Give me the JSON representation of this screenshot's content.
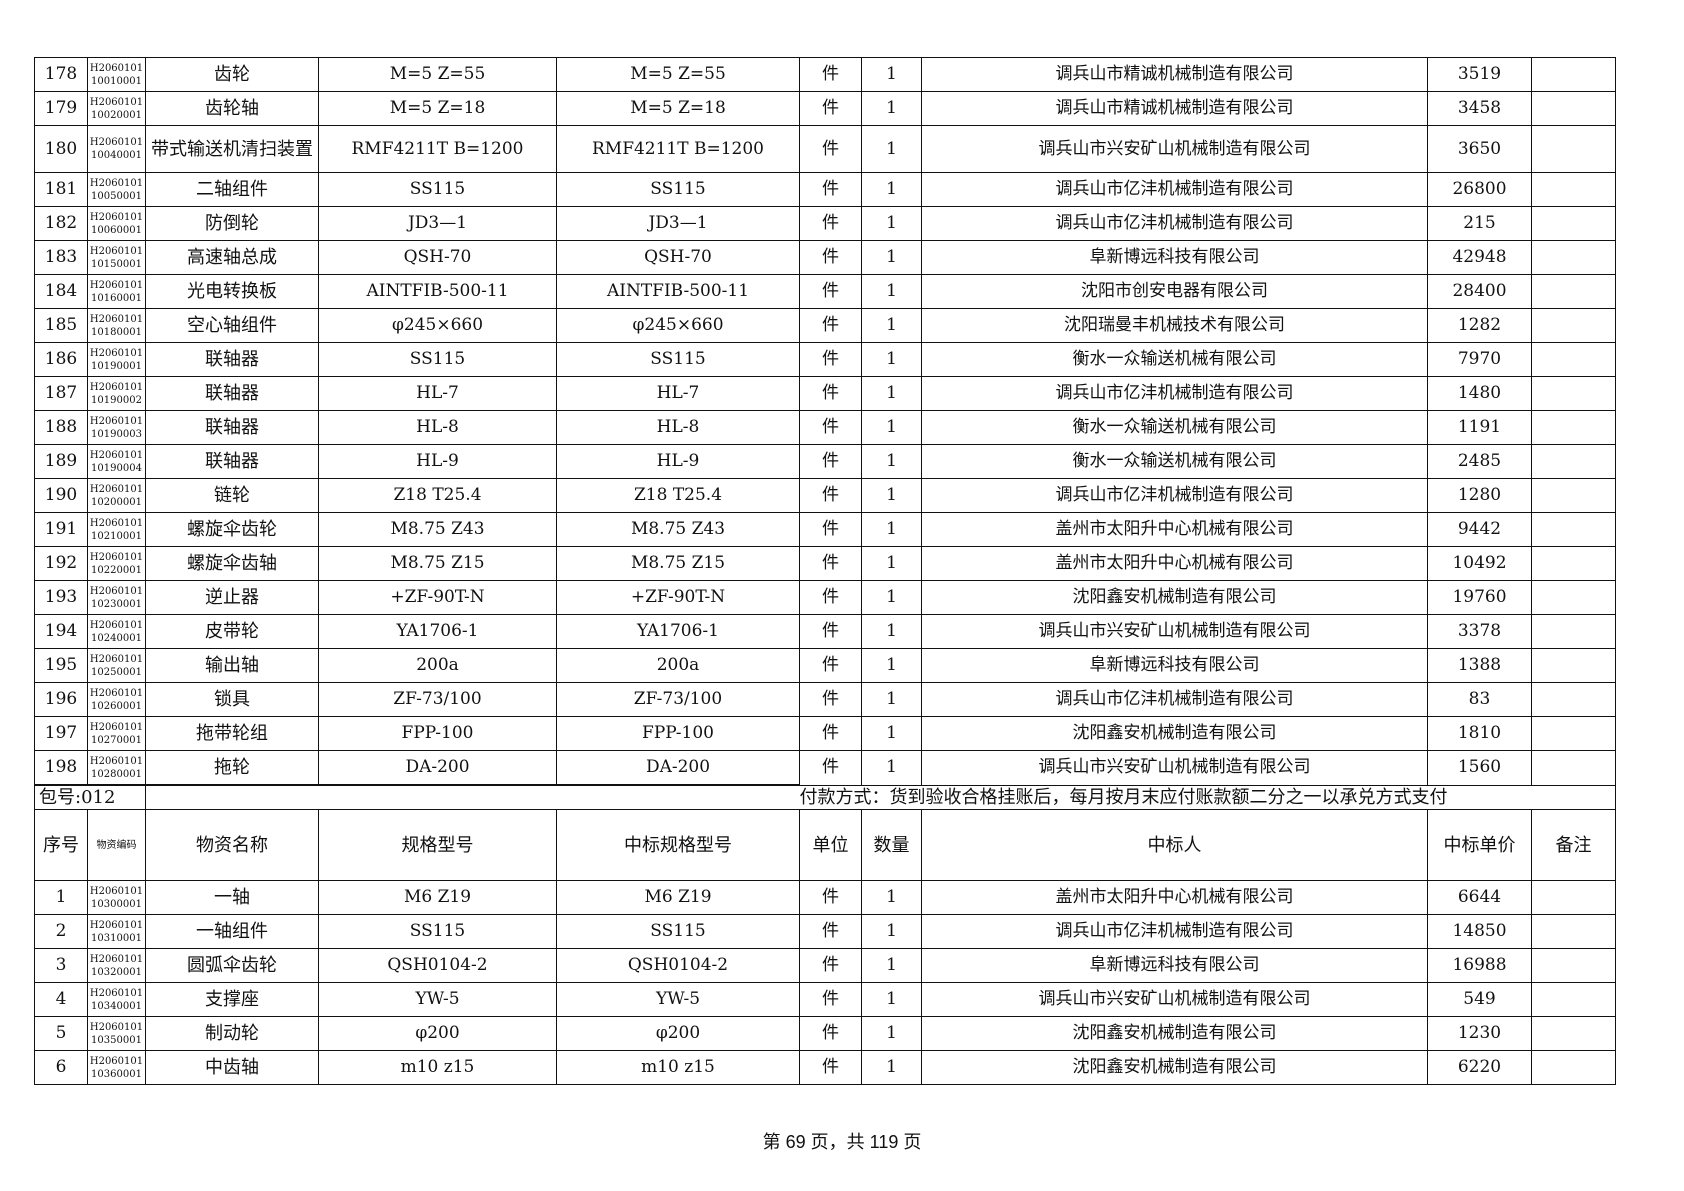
{
  "rows_top": [
    {
      "no": "178",
      "code": [
        "H2060101",
        "10010001"
      ],
      "name": "齿轮",
      "spec": "M=5 Z=55",
      "bid_spec": "M=5 Z=55",
      "unit": "件",
      "qty": "1",
      "bidder": "调兵山市精诚机械制造有限公司",
      "price": "3519",
      "remark": ""
    },
    {
      "no": "179",
      "code": [
        "H2060101",
        "10020001"
      ],
      "name": "齿轮轴",
      "spec": "M=5 Z=18",
      "bid_spec": "M=5 Z=18",
      "unit": "件",
      "qty": "1",
      "bidder": "调兵山市精诚机械制造有限公司",
      "price": "3458",
      "remark": ""
    },
    {
      "no": "180",
      "code": [
        "H2060101",
        "10040001"
      ],
      "name": "带式输送机清扫装置",
      "spec": "RMF4211T B=1200",
      "bid_spec": "RMF4211T B=1200",
      "unit": "件",
      "qty": "1",
      "bidder": "调兵山市兴安矿山机械制造有限公司",
      "price": "3650",
      "remark": ""
    },
    {
      "no": "181",
      "code": [
        "H2060101",
        "10050001"
      ],
      "name": "二轴组件",
      "spec": "SS115",
      "bid_spec": "SS115",
      "unit": "件",
      "qty": "1",
      "bidder": "调兵山市亿沣机械制造有限公司",
      "price": "26800",
      "remark": ""
    },
    {
      "no": "182",
      "code": [
        "H2060101",
        "10060001"
      ],
      "name": "防倒轮",
      "spec": "JD3—1",
      "bid_spec": "JD3—1",
      "unit": "件",
      "qty": "1",
      "bidder": "调兵山市亿沣机械制造有限公司",
      "price": "215",
      "remark": ""
    },
    {
      "no": "183",
      "code": [
        "H2060101",
        "10150001"
      ],
      "name": "高速轴总成",
      "spec": "QSH-70",
      "bid_spec": "QSH-70",
      "unit": "件",
      "qty": "1",
      "bidder": "阜新博远科技有限公司",
      "price": "42948",
      "remark": ""
    },
    {
      "no": "184",
      "code": [
        "H2060101",
        "10160001"
      ],
      "name": "光电转换板",
      "spec": "AINTFIB-500-11",
      "bid_spec": "AINTFIB-500-11",
      "unit": "件",
      "qty": "1",
      "bidder": "沈阳市创安电器有限公司",
      "price": "28400",
      "remark": ""
    },
    {
      "no": "185",
      "code": [
        "H2060101",
        "10180001"
      ],
      "name": "空心轴组件",
      "spec": "φ245×660",
      "bid_spec": "φ245×660",
      "unit": "件",
      "qty": "1",
      "bidder": "沈阳瑞曼丰机械技术有限公司",
      "price": "1282",
      "remark": ""
    },
    {
      "no": "186",
      "code": [
        "H2060101",
        "10190001"
      ],
      "name": "联轴器",
      "spec": "SS115",
      "bid_spec": "SS115",
      "unit": "件",
      "qty": "1",
      "bidder": "衡水一众输送机械有限公司",
      "price": "7970",
      "remark": ""
    },
    {
      "no": "187",
      "code": [
        "H2060101",
        "10190002"
      ],
      "name": "联轴器",
      "spec": "HL-7",
      "bid_spec": "HL-7",
      "unit": "件",
      "qty": "1",
      "bidder": "调兵山市亿沣机械制造有限公司",
      "price": "1480",
      "remark": ""
    },
    {
      "no": "188",
      "code": [
        "H2060101",
        "10190003"
      ],
      "name": "联轴器",
      "spec": "HL-8",
      "bid_spec": "HL-8",
      "unit": "件",
      "qty": "1",
      "bidder": "衡水一众输送机械有限公司",
      "price": "1191",
      "remark": ""
    },
    {
      "no": "189",
      "code": [
        "H2060101",
        "10190004"
      ],
      "name": "联轴器",
      "spec": "HL-9",
      "bid_spec": "HL-9",
      "unit": "件",
      "qty": "1",
      "bidder": "衡水一众输送机械有限公司",
      "price": "2485",
      "remark": ""
    },
    {
      "no": "190",
      "code": [
        "H2060101",
        "10200001"
      ],
      "name": "链轮",
      "spec": "Z18 T25.4",
      "bid_spec": "Z18 T25.4",
      "unit": "件",
      "qty": "1",
      "bidder": "调兵山市亿沣机械制造有限公司",
      "price": "1280",
      "remark": ""
    },
    {
      "no": "191",
      "code": [
        "H2060101",
        "10210001"
      ],
      "name": "螺旋伞齿轮",
      "spec": "M8.75 Z43",
      "bid_spec": "M8.75 Z43",
      "unit": "件",
      "qty": "1",
      "bidder": "盖州市太阳升中心机械有限公司",
      "price": "9442",
      "remark": ""
    },
    {
      "no": "192",
      "code": [
        "H2060101",
        "10220001"
      ],
      "name": "螺旋伞齿轴",
      "spec": "M8.75 Z15",
      "bid_spec": "M8.75 Z15",
      "unit": "件",
      "qty": "1",
      "bidder": "盖州市太阳升中心机械有限公司",
      "price": "10492",
      "remark": ""
    },
    {
      "no": "193",
      "code": [
        "H2060101",
        "10230001"
      ],
      "name": "逆止器",
      "spec": "+ZF-90T-N",
      "bid_spec": "+ZF-90T-N",
      "unit": "件",
      "qty": "1",
      "bidder": "沈阳鑫安机械制造有限公司",
      "price": "19760",
      "remark": ""
    },
    {
      "no": "194",
      "code": [
        "H2060101",
        "10240001"
      ],
      "name": "皮带轮",
      "spec": "YA1706-1",
      "bid_spec": "YA1706-1",
      "unit": "件",
      "qty": "1",
      "bidder": "调兵山市兴安矿山机械制造有限公司",
      "price": "3378",
      "remark": ""
    },
    {
      "no": "195",
      "code": [
        "H2060101",
        "10250001"
      ],
      "name": "输出轴",
      "spec": "200a",
      "bid_spec": "200a",
      "unit": "件",
      "qty": "1",
      "bidder": "阜新博远科技有限公司",
      "price": "1388",
      "remark": ""
    },
    {
      "no": "196",
      "code": [
        "H2060101",
        "10260001"
      ],
      "name": "锁具",
      "spec": "ZF-73/100",
      "bid_spec": "ZF-73/100",
      "unit": "件",
      "qty": "1",
      "bidder": "调兵山市亿沣机械制造有限公司",
      "price": "83",
      "remark": ""
    },
    {
      "no": "197",
      "code": [
        "H2060101",
        "10270001"
      ],
      "name": "拖带轮组",
      "spec": "FPP-100",
      "bid_spec": "FPP-100",
      "unit": "件",
      "qty": "1",
      "bidder": "沈阳鑫安机械制造有限公司",
      "price": "1810",
      "remark": ""
    },
    {
      "no": "198",
      "code": [
        "H2060101",
        "10280001"
      ],
      "name": "拖轮",
      "spec": "DA-200",
      "bid_spec": "DA-200",
      "unit": "件",
      "qty": "1",
      "bidder": "调兵山市兴安矿山机械制造有限公司",
      "price": "1560",
      "remark": ""
    }
  ],
  "package": {
    "label": "包号:012",
    "payment": "付款方式：货到验收合格挂账后，每月按月末应付账款额二分之一以承兑方式支付"
  },
  "headers": {
    "no": "序号",
    "code": "物资编码",
    "name": "物资名称",
    "spec": "规格型号",
    "bid_spec": "中标规格型号",
    "unit": "单位",
    "qty": "数量",
    "bidder": "中标人",
    "price": "中标单价",
    "remark": "备注"
  },
  "rows_bottom": [
    {
      "no": "1",
      "code": [
        "H2060101",
        "10300001"
      ],
      "name": "一轴",
      "spec": "M6 Z19",
      "bid_spec": "M6 Z19",
      "unit": "件",
      "qty": "1",
      "bidder": "盖州市太阳升中心机械有限公司",
      "price": "6644",
      "remark": ""
    },
    {
      "no": "2",
      "code": [
        "H2060101",
        "10310001"
      ],
      "name": "一轴组件",
      "spec": "SS115",
      "bid_spec": "SS115",
      "unit": "件",
      "qty": "1",
      "bidder": "调兵山市亿沣机械制造有限公司",
      "price": "14850",
      "remark": ""
    },
    {
      "no": "3",
      "code": [
        "H2060101",
        "10320001"
      ],
      "name": "圆弧伞齿轮",
      "spec": "QSH0104-2",
      "bid_spec": "QSH0104-2",
      "unit": "件",
      "qty": "1",
      "bidder": "阜新博远科技有限公司",
      "price": "16988",
      "remark": ""
    },
    {
      "no": "4",
      "code": [
        "H2060101",
        "10340001"
      ],
      "name": "支撑座",
      "spec": "YW-5",
      "bid_spec": "YW-5",
      "unit": "件",
      "qty": "1",
      "bidder": "调兵山市兴安矿山机械制造有限公司",
      "price": "549",
      "remark": ""
    },
    {
      "no": "5",
      "code": [
        "H2060101",
        "10350001"
      ],
      "name": "制动轮",
      "spec": "φ200",
      "bid_spec": "φ200",
      "unit": "件",
      "qty": "1",
      "bidder": "沈阳鑫安机械制造有限公司",
      "price": "1230",
      "remark": ""
    },
    {
      "no": "6",
      "code": [
        "H2060101",
        "10360001"
      ],
      "name": "中齿轴",
      "spec": "m10 z15",
      "bid_spec": "m10 z15",
      "unit": "件",
      "qty": "1",
      "bidder": "沈阳鑫安机械制造有限公司",
      "price": "6220",
      "remark": ""
    }
  ],
  "footer": "第 69 页，共 119 页"
}
